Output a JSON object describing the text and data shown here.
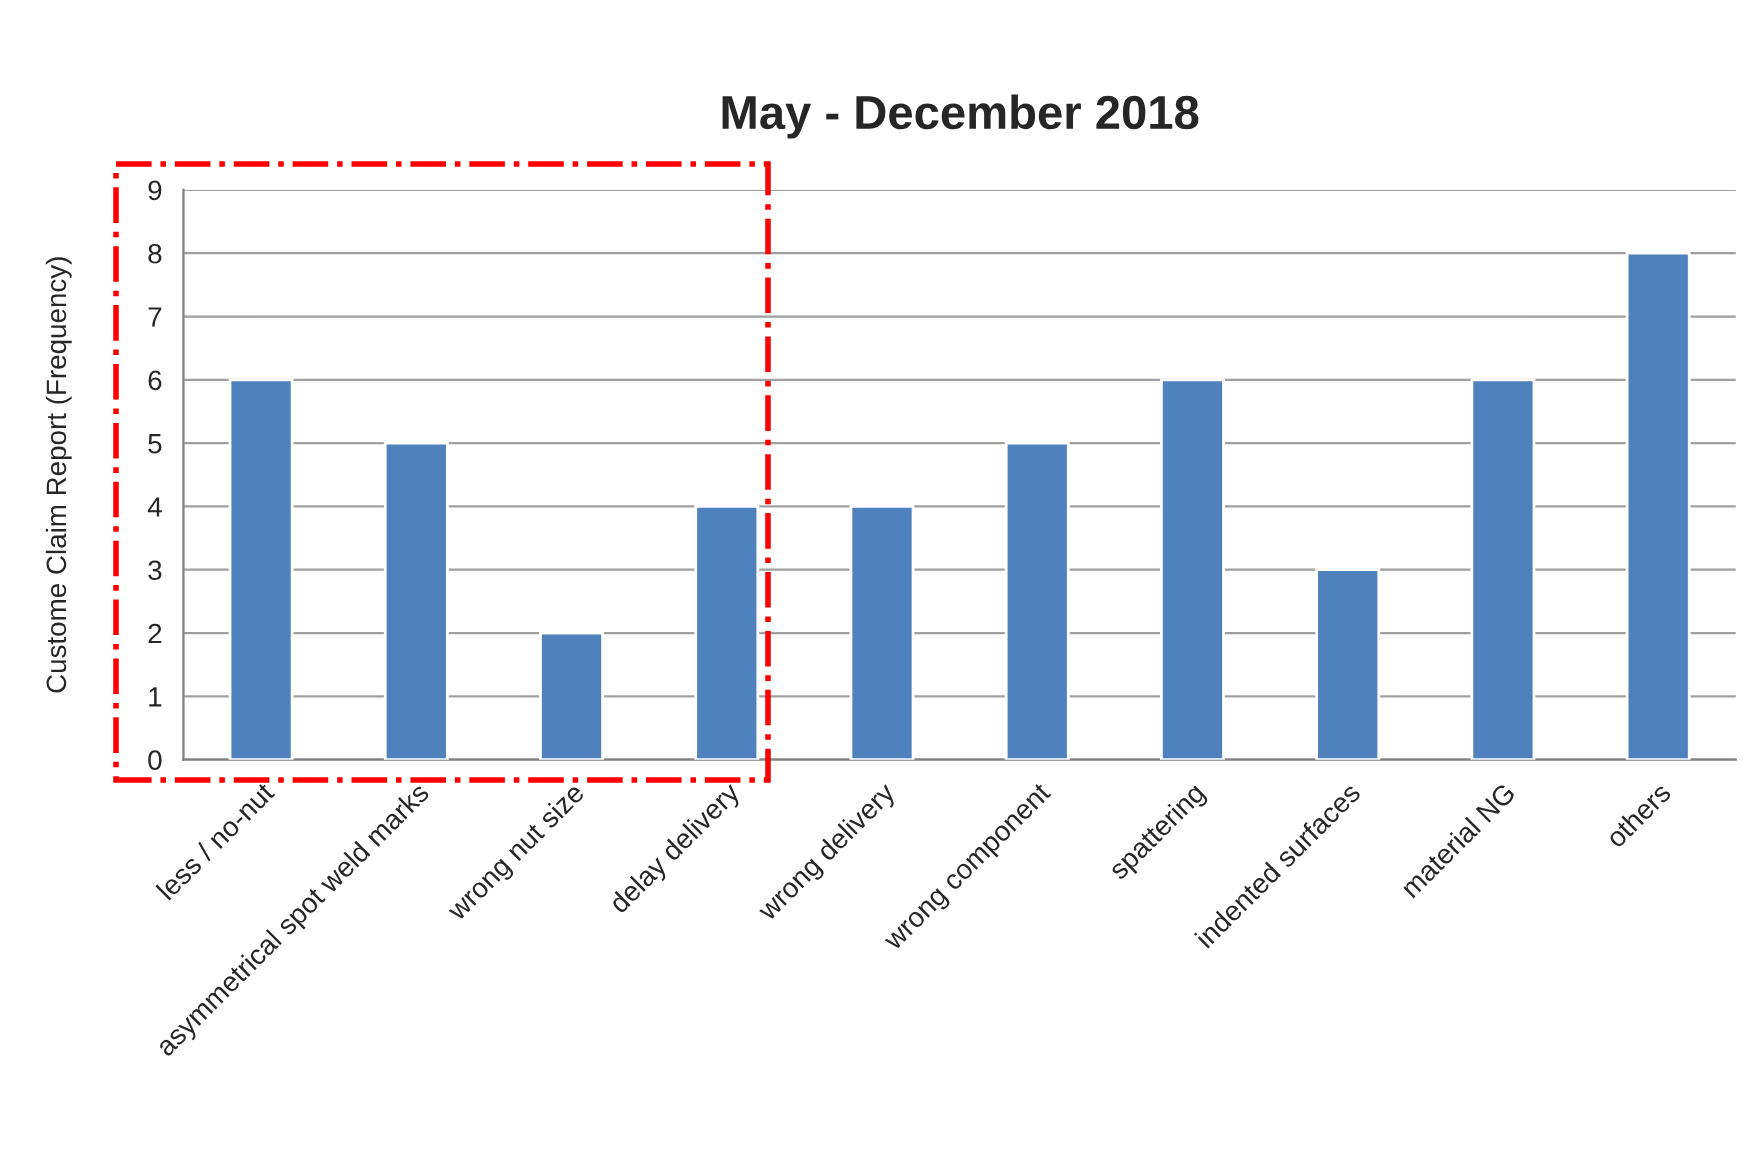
{
  "chart_data": {
    "type": "bar",
    "title": "May - December 2018",
    "ylabel": "Custome Claim Report (Frequency)",
    "categories": [
      "less / no-nut",
      "asymmetrical spot weld marks",
      "wrong nut size",
      "delay delivery",
      "wrong delivery",
      "wrong component",
      "spattering",
      "indented surfaces",
      "material NG",
      "others"
    ],
    "values": [
      6,
      5,
      2,
      4,
      4,
      5,
      6,
      3,
      6,
      8
    ],
    "color": "#4f81bd",
    "ylim": [
      0,
      9
    ],
    "yticks": [
      0,
      1,
      2,
      3,
      4,
      5,
      6,
      7,
      8,
      9
    ],
    "grid": "y",
    "legend": false
  }
}
